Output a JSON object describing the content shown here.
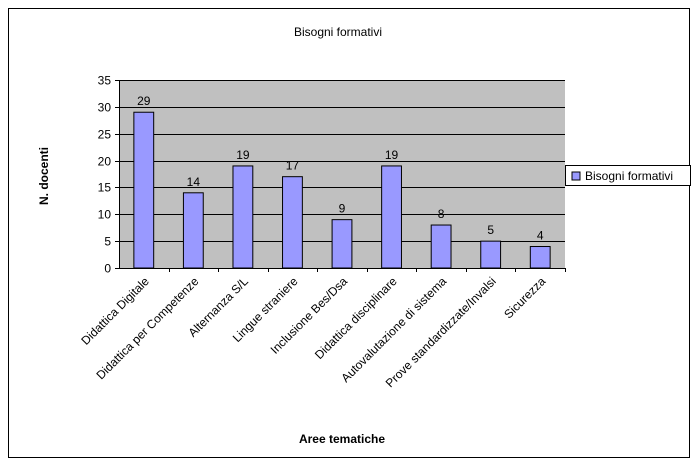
{
  "chart_data": {
    "type": "bar",
    "title": "Bisogni formativi",
    "xlabel": "Aree tematiche",
    "ylabel": "N. docenti",
    "categories": [
      "Didattica Digitale",
      "Didattica per Competenze",
      "Alternanza S/L",
      "Lingue straniere",
      "Inclusione Bes/Dsa",
      "Didattica disciplinare",
      "Autovalutazione di sistema",
      "Prove standardizzate/Invalsi",
      "Sicurezza"
    ],
    "series": [
      {
        "name": "Bisogni formativi",
        "values": [
          29,
          14,
          19,
          17,
          9,
          19,
          8,
          5,
          4
        ]
      }
    ],
    "ylim": [
      0,
      35
    ],
    "yticks": [
      0,
      5,
      10,
      15,
      20,
      25,
      30,
      35
    ],
    "grid": true,
    "legend": "right",
    "colors": {
      "bar_fill": "#9999ff",
      "bar_stroke": "#000000",
      "plot_background": "#c0c0c0",
      "grid": "#000000"
    }
  }
}
